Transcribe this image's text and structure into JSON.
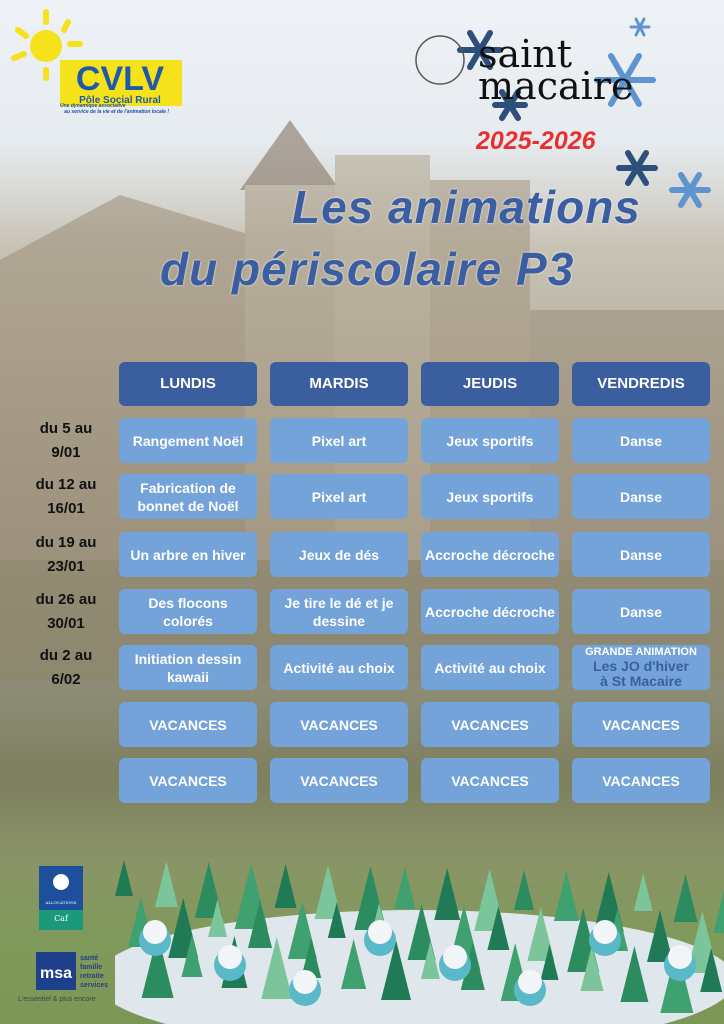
{
  "logos": {
    "cvlv": {
      "name": "CVLV",
      "subtitle": "Pôle Social Rural",
      "tagline_1": "Une dynamique associative",
      "tagline_2": "au service de la vie et de l'animation locale !"
    },
    "saint_macaire": {
      "line1": "saint",
      "line2": "macaire"
    },
    "caf": {
      "line1": "ALLOCATIONS FAMILIALES",
      "line2": "Caf",
      "line3": "de la Gironde"
    },
    "msa": {
      "name": "msa",
      "lines": [
        "santé",
        "famille",
        "retraite",
        "services"
      ],
      "slogan": "L'essentiel & plus encore"
    }
  },
  "year": "2025-2026",
  "title": {
    "line1": "Les animations",
    "line2": "du périscolaire P3"
  },
  "colors": {
    "header": "#3a5e9e",
    "cell": "#74a3d9",
    "year": "#e8302f",
    "title": "#3b5ea3"
  },
  "days": [
    "LUNDIS",
    "MARDIS",
    "JEUDIS",
    "VENDREDIS"
  ],
  "weeks": [
    {
      "label": [
        "du 5 au",
        "9/01"
      ],
      "cells": [
        "Rangement Noël",
        "Pixel art",
        "Jeux sportifs",
        "Danse"
      ]
    },
    {
      "label": [
        "du 12 au",
        "16/01"
      ],
      "cells": [
        "Fabrication de bonnet de Noël",
        "Pixel art",
        "Jeux sportifs",
        "Danse"
      ]
    },
    {
      "label": [
        "du 19 au",
        "23/01"
      ],
      "cells": [
        "Un arbre en hiver",
        "Jeux de dés",
        "Accroche décroche",
        "Danse"
      ]
    },
    {
      "label": [
        "du 26 au",
        "30/01"
      ],
      "cells": [
        "Des flocons colorés",
        "Je tire le dé et je dessine",
        "Accroche décroche",
        "Danse"
      ]
    },
    {
      "label": [
        "du 2 au",
        "6/02"
      ],
      "cells": [
        "Initiation dessin kawaii",
        "Activité au choix",
        "Activité au choix",
        ""
      ],
      "special": {
        "heading": "GRANDE ANIMATION",
        "line1": "Les JO d'hiver",
        "line2": "à St Macaire"
      }
    },
    {
      "label": [
        "",
        ""
      ],
      "cells": [
        "VACANCES",
        "VACANCES",
        "VACANCES",
        "VACANCES"
      ]
    },
    {
      "label": [
        "",
        ""
      ],
      "cells": [
        "VACANCES",
        "VACANCES",
        "VACANCES",
        "VACANCES"
      ]
    }
  ]
}
